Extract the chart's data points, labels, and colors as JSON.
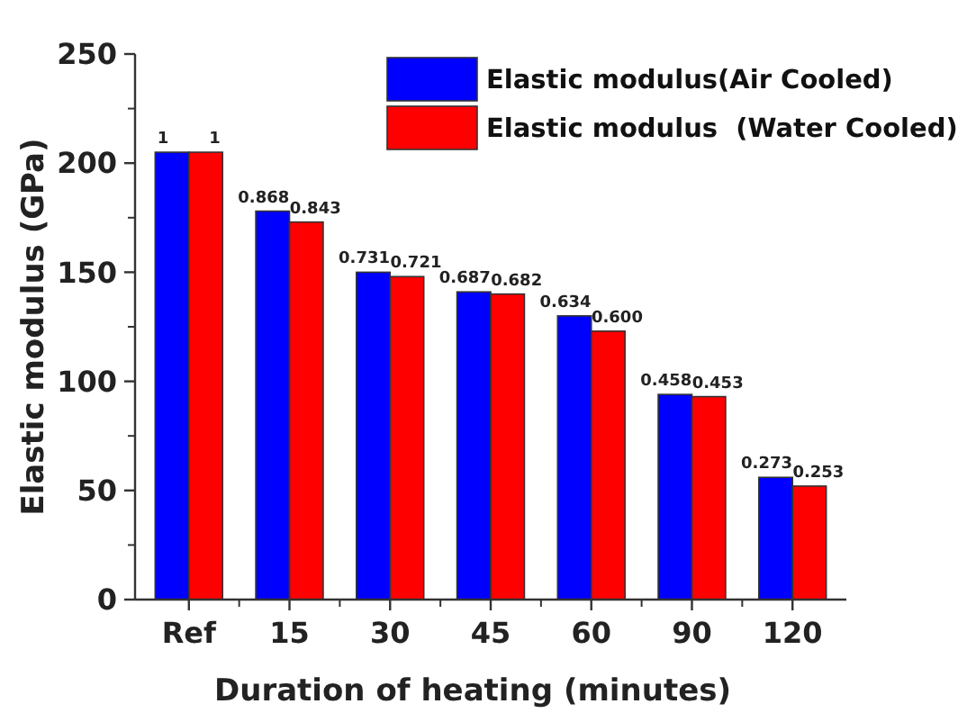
{
  "chart_data": {
    "type": "bar",
    "xlabel": "Duration of heating (minutes)",
    "ylabel": "Elastic modulus (GPa)",
    "categories": [
      "Ref",
      "15",
      "30",
      "45",
      "60",
      "90",
      "120"
    ],
    "series": [
      {
        "name": "Elastic modulus(Air Cooled)",
        "color": "#0000ff",
        "values": [
          205,
          178,
          150,
          141,
          130,
          94,
          56
        ]
      },
      {
        "name": "Elastic modulus  (Water Cooled)",
        "color": "#ff0000",
        "values": [
          205,
          173,
          148,
          140,
          123,
          93,
          52
        ]
      }
    ],
    "annotations": [
      {
        "text": "1",
        "x": "Ref",
        "y": 205
      },
      {
        "text": "1",
        "x": "Ref",
        "y": 205
      },
      {
        "text": "0.868",
        "x": "15",
        "y": 178
      },
      {
        "text": "0.843",
        "x": "15",
        "y": 173
      },
      {
        "text": "0.731",
        "x": "30",
        "y": 150
      },
      {
        "text": "0.721",
        "x": "30",
        "y": 148
      },
      {
        "text": "0.687",
        "x": "45",
        "y": 141
      },
      {
        "text": "0.682",
        "x": "45",
        "y": 140
      },
      {
        "text": "0.634",
        "x": "60",
        "y": 130
      },
      {
        "text": "0.600",
        "x": "60",
        "y": 123
      },
      {
        "text": "0.458",
        "x": "90",
        "y": 94
      },
      {
        "text": "0.453",
        "x": "90",
        "y": 93
      },
      {
        "text": "0.273",
        "x": "120",
        "y": 56
      },
      {
        "text": "0.253",
        "x": "120",
        "y": 52
      }
    ],
    "ylim": [
      0,
      250
    ],
    "yticks": [
      0,
      50,
      100,
      150,
      200,
      250
    ],
    "grid": false,
    "legend": "top right"
  }
}
